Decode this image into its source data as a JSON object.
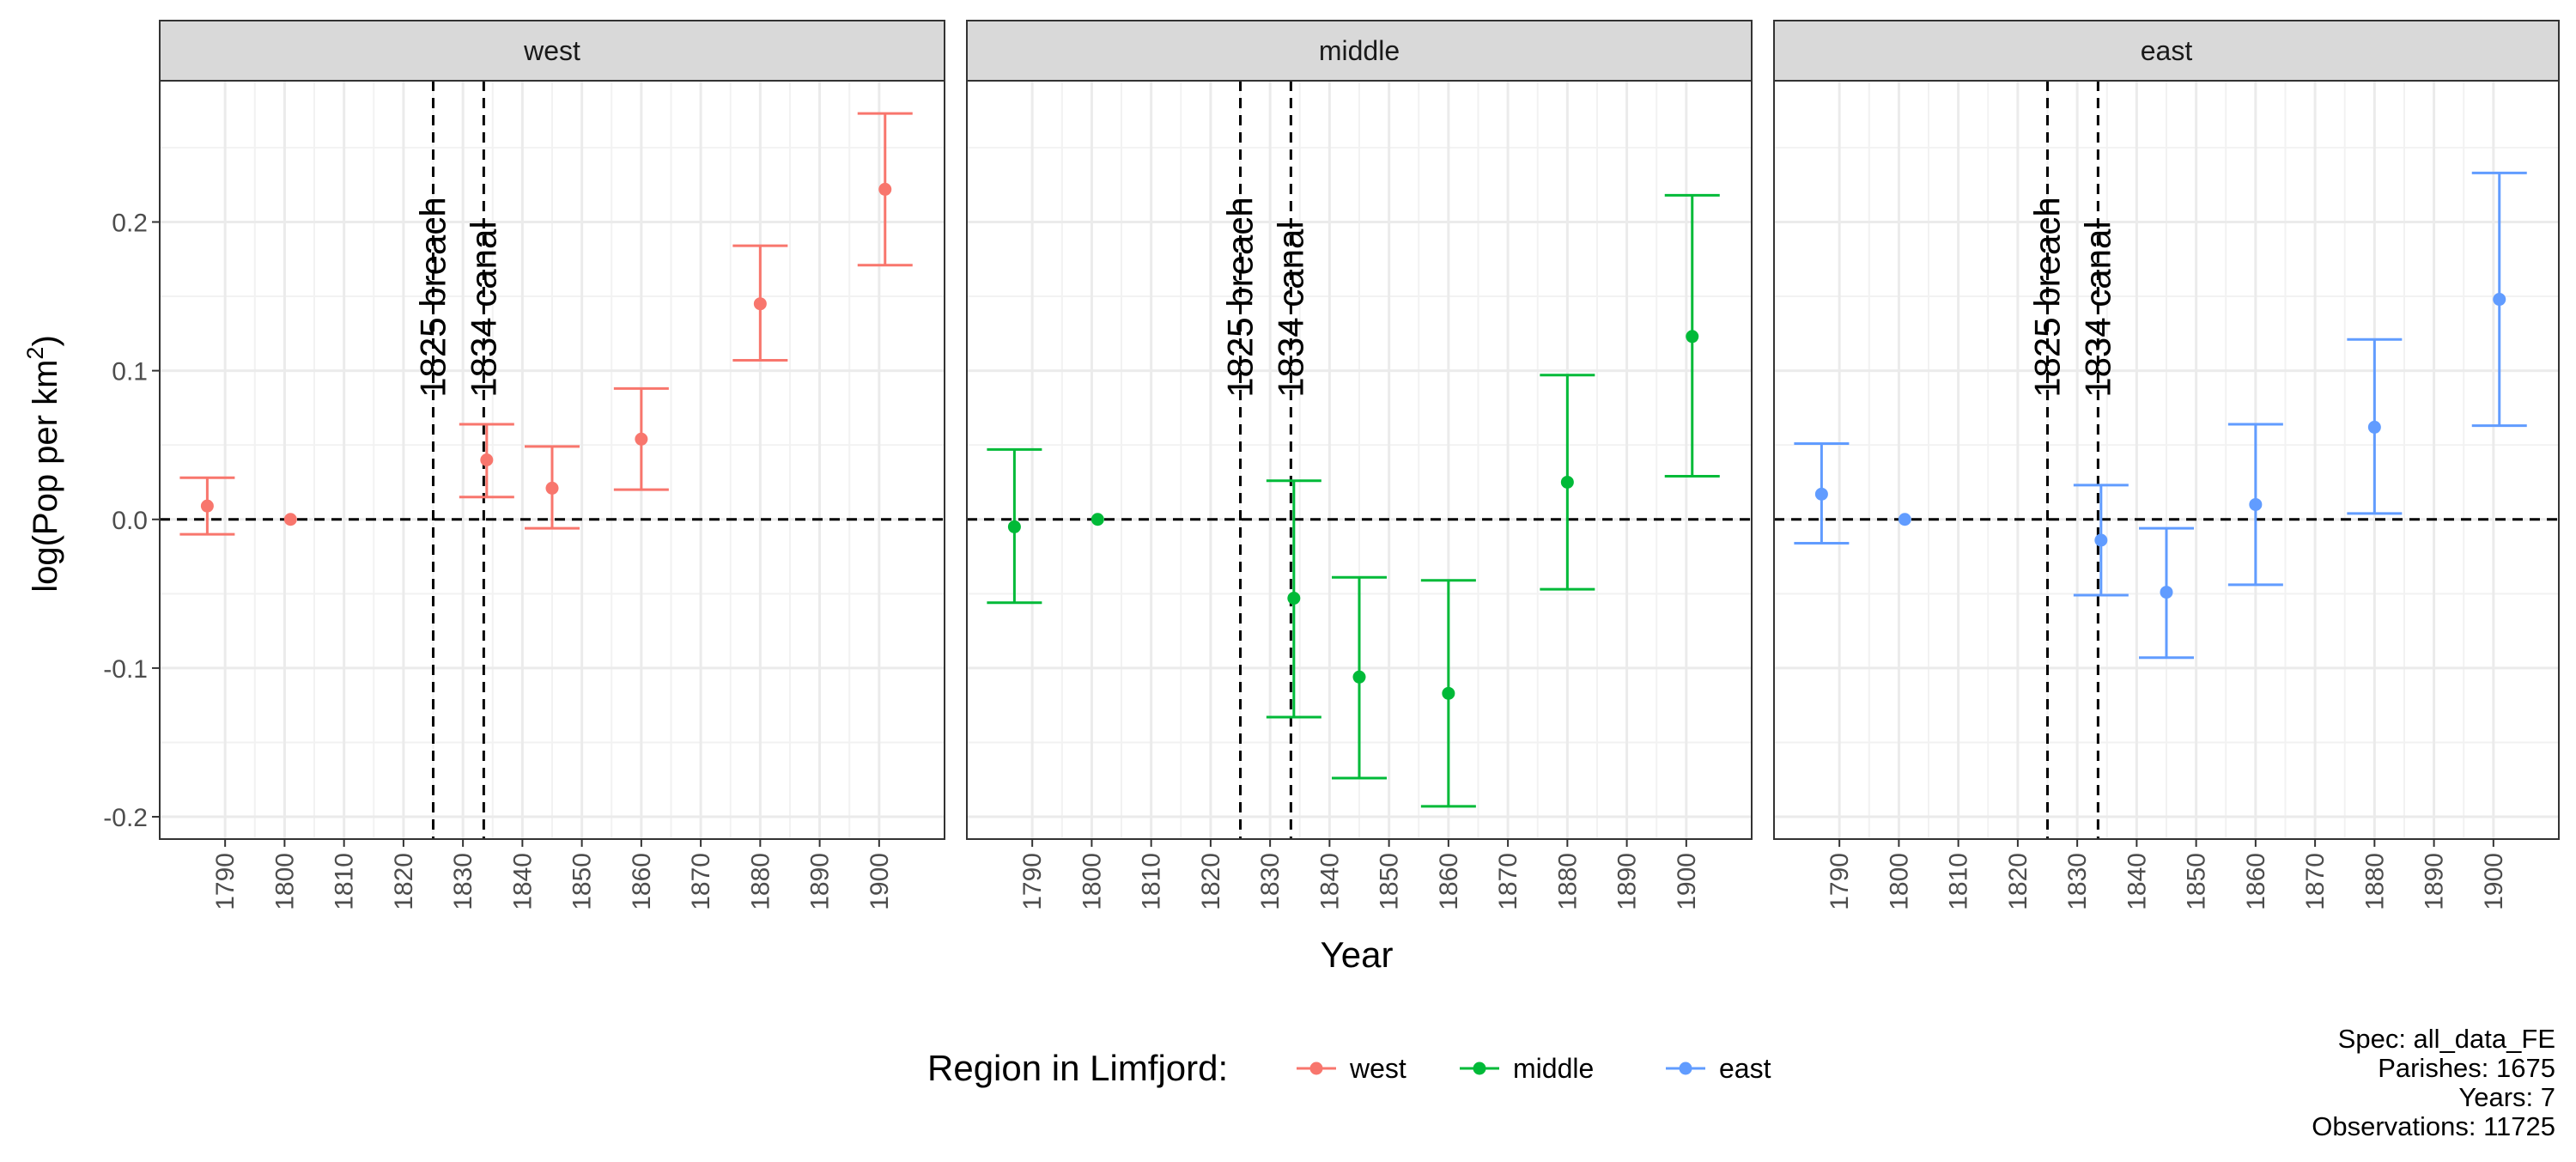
{
  "chart_data": {
    "type": "scatter",
    "subtype": "point-with-errorbars, faceted",
    "title": "",
    "xlabel": "Year",
    "ylabel": "log(Pop per km",
    "ylabel_sup": "2",
    "ylabel_close": ")",
    "xlim": [
      1779,
      1911
    ],
    "ylim": [
      -0.215,
      0.295
    ],
    "x_ticks": [
      1790,
      1800,
      1810,
      1820,
      1830,
      1840,
      1850,
      1860,
      1870,
      1880,
      1890,
      1900
    ],
    "y_ticks": [
      -0.2,
      -0.1,
      0.0,
      0.1,
      0.2
    ],
    "y_tick_labels": [
      "-0.2",
      "-0.1",
      "0.0",
      "0.1",
      "0.2"
    ],
    "grid": true,
    "reference_lines": {
      "horizontal": 0.0,
      "vertical": [
        {
          "x": 1825,
          "label": "1825 breach"
        },
        {
          "x": 1833.5,
          "label": "1834 canal"
        }
      ]
    },
    "legend": {
      "title": "Region in Limfjord:",
      "position": "bottom",
      "entries": [
        "west",
        "middle",
        "east"
      ]
    },
    "caption": [
      "Spec: all_data_FE",
      "Parishes: 1675",
      "Years: 7",
      "Observations: 11725"
    ],
    "facets": [
      {
        "name": "west",
        "color": "#F8766D",
        "points": [
          {
            "x": 1787,
            "y": 0.009,
            "lo": -0.01,
            "hi": 0.028
          },
          {
            "x": 1801,
            "y": 0.0,
            "lo": 0.0,
            "hi": 0.0
          },
          {
            "x": 1834,
            "y": 0.04,
            "lo": 0.015,
            "hi": 0.064
          },
          {
            "x": 1845,
            "y": 0.021,
            "lo": -0.006,
            "hi": 0.049
          },
          {
            "x": 1860,
            "y": 0.054,
            "lo": 0.02,
            "hi": 0.088
          },
          {
            "x": 1880,
            "y": 0.145,
            "lo": 0.107,
            "hi": 0.184
          },
          {
            "x": 1901,
            "y": 0.222,
            "lo": 0.171,
            "hi": 0.273
          }
        ]
      },
      {
        "name": "middle",
        "color": "#00BA38",
        "points": [
          {
            "x": 1787,
            "y": -0.005,
            "lo": -0.056,
            "hi": 0.047
          },
          {
            "x": 1801,
            "y": 0.0,
            "lo": 0.0,
            "hi": 0.0
          },
          {
            "x": 1834,
            "y": -0.053,
            "lo": -0.133,
            "hi": 0.026
          },
          {
            "x": 1845,
            "y": -0.106,
            "lo": -0.174,
            "hi": -0.039
          },
          {
            "x": 1860,
            "y": -0.117,
            "lo": -0.193,
            "hi": -0.041
          },
          {
            "x": 1880,
            "y": 0.025,
            "lo": -0.047,
            "hi": 0.097
          },
          {
            "x": 1901,
            "y": 0.123,
            "lo": 0.029,
            "hi": 0.218
          }
        ]
      },
      {
        "name": "east",
        "color": "#619CFF",
        "points": [
          {
            "x": 1787,
            "y": 0.017,
            "lo": -0.016,
            "hi": 0.051
          },
          {
            "x": 1801,
            "y": 0.0,
            "lo": 0.0,
            "hi": 0.0
          },
          {
            "x": 1834,
            "y": -0.014,
            "lo": -0.051,
            "hi": 0.023
          },
          {
            "x": 1845,
            "y": -0.049,
            "lo": -0.093,
            "hi": -0.006
          },
          {
            "x": 1860,
            "y": 0.01,
            "lo": -0.044,
            "hi": 0.064
          },
          {
            "x": 1880,
            "y": 0.062,
            "lo": 0.004,
            "hi": 0.121
          },
          {
            "x": 1901,
            "y": 0.148,
            "lo": 0.063,
            "hi": 0.233
          }
        ]
      }
    ]
  }
}
